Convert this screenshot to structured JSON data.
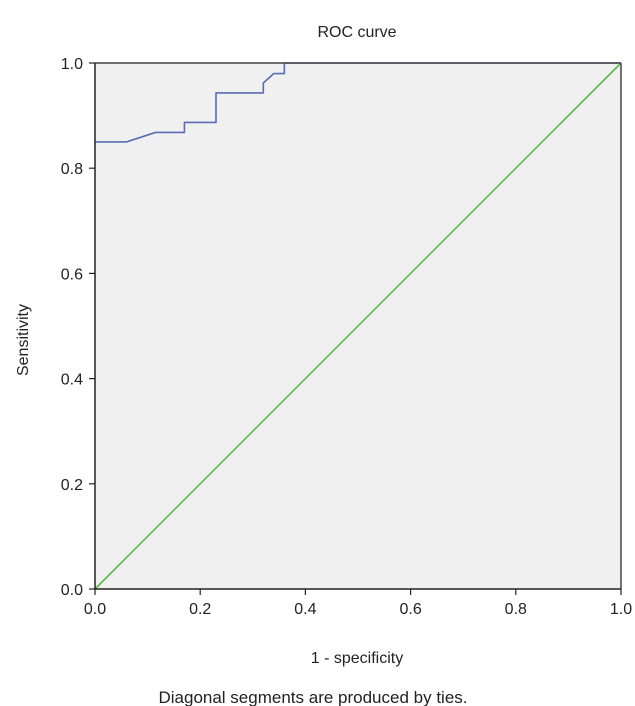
{
  "chart_data": {
    "type": "line",
    "title": "ROC curve",
    "xlabel": "1 - specificity",
    "ylabel": "Sensitivity",
    "xlim": [
      0,
      1
    ],
    "ylim": [
      0,
      1
    ],
    "x_ticks": [
      "0.0",
      "0.2",
      "0.4",
      "0.6",
      "0.8",
      "1.0"
    ],
    "y_ticks": [
      "0.0",
      "0.2",
      "0.4",
      "0.6",
      "0.8",
      "1.0"
    ],
    "grid": false,
    "series": [
      {
        "color": "#5b6bb5",
        "points": [
          [
            0.0,
            0.85
          ],
          [
            0.06,
            0.85
          ],
          [
            0.115,
            0.868
          ],
          [
            0.17,
            0.868
          ],
          [
            0.17,
            0.887
          ],
          [
            0.23,
            0.887
          ],
          [
            0.23,
            0.943
          ],
          [
            0.32,
            0.943
          ],
          [
            0.32,
            0.962
          ],
          [
            0.34,
            0.98
          ],
          [
            0.36,
            0.98
          ],
          [
            0.36,
            1.0
          ],
          [
            1.0,
            1.0
          ]
        ]
      },
      {
        "color": "#5cb848",
        "points": [
          [
            0.0,
            0.0
          ],
          [
            1.0,
            1.0
          ]
        ]
      }
    ],
    "plot_background": "#f0f0f0",
    "footnote": "Diagonal segments are produced by ties."
  }
}
